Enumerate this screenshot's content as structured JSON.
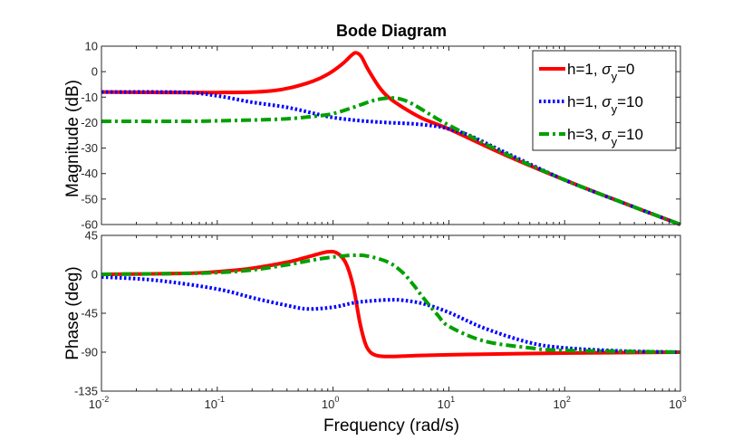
{
  "chart_data": {
    "type": "line",
    "title": "Bode Diagram",
    "xlabel": "Frequency  (rad/s)",
    "xscale": "log",
    "xlim": [
      0.01,
      1000
    ],
    "xticks": [
      {
        "base": "10",
        "exp": "-2",
        "value": 0.01
      },
      {
        "base": "10",
        "exp": "-1",
        "value": 0.1
      },
      {
        "base": "10",
        "exp": "0",
        "value": 1
      },
      {
        "base": "10",
        "exp": "1",
        "value": 10
      },
      {
        "base": "10",
        "exp": "2",
        "value": 100
      },
      {
        "base": "10",
        "exp": "3",
        "value": 1000
      }
    ],
    "magnitude": {
      "ylabel": "Magnitude (dB)",
      "ylim": [
        -60,
        10
      ],
      "yticks": [
        "10",
        "0",
        "-10",
        "-20",
        "-30",
        "-40",
        "-50",
        "-60"
      ],
      "series": [
        {
          "name": "h=1, σy=0",
          "color": "#ff0000",
          "style": "solid",
          "x": [
            0.01,
            0.1,
            0.3,
            0.6,
            0.9,
            1.2,
            1.45,
            1.58,
            1.75,
            2.0,
            2.5,
            3.0,
            4.0,
            6.0,
            10,
            30,
            100,
            300,
            1000
          ],
          "y": [
            -8,
            -8.2,
            -7.5,
            -4.5,
            -1,
            3,
            6.5,
            7.4,
            6,
            1,
            -6,
            -10,
            -14,
            -18.5,
            -22.5,
            -32.5,
            -42.5,
            -51,
            -60
          ]
        },
        {
          "name": "h=1, σy=10",
          "color": "#0000ff",
          "style": "dotted",
          "x": [
            0.01,
            0.05,
            0.1,
            0.2,
            0.4,
            0.7,
            1.0,
            1.5,
            2.0,
            3.0,
            5.0,
            8.0,
            10,
            15,
            30,
            100,
            300,
            1000
          ],
          "y": [
            -8,
            -8.1,
            -9.5,
            -12,
            -14,
            -16.5,
            -18,
            -19,
            -19.5,
            -20,
            -20.5,
            -21.5,
            -22.5,
            -25,
            -31.5,
            -42.5,
            -51,
            -60
          ]
        },
        {
          "name": "h=3, σy=10",
          "color": "#00a000",
          "style": "dashdot",
          "x": [
            0.01,
            0.05,
            0.1,
            0.2,
            0.4,
            0.7,
            1.0,
            1.5,
            2.0,
            2.5,
            3.2,
            4.0,
            5.0,
            7.0,
            10,
            30,
            100,
            300,
            1000
          ],
          "y": [
            -19.5,
            -19.5,
            -19.3,
            -19,
            -18.5,
            -17.5,
            -16.5,
            -14,
            -12,
            -10.8,
            -10.3,
            -11,
            -13,
            -17,
            -21,
            -32,
            -42.5,
            -51,
            -60
          ]
        }
      ]
    },
    "phase": {
      "ylabel": "Phase (deg)",
      "ylim": [
        -135,
        45
      ],
      "yticks": [
        "45",
        "0",
        "-45",
        "-90",
        "-135"
      ],
      "series": [
        {
          "name": "h=1, σy=0",
          "color": "#ff0000",
          "style": "solid",
          "x": [
            0.01,
            0.05,
            0.1,
            0.2,
            0.4,
            0.6,
            0.9,
            1.1,
            1.3,
            1.5,
            1.7,
            1.9,
            2.1,
            2.4,
            3.0,
            5.0,
            10,
            30,
            100,
            1000
          ],
          "y": [
            0,
            1,
            3,
            7,
            14,
            20,
            26,
            24,
            12,
            -15,
            -55,
            -80,
            -90,
            -94,
            -95,
            -94,
            -93,
            -92,
            -91,
            -90
          ]
        },
        {
          "name": "h=1, σy=10",
          "color": "#0000ff",
          "style": "dotted",
          "x": [
            0.01,
            0.03,
            0.1,
            0.2,
            0.4,
            0.6,
            1.0,
            1.5,
            2.0,
            3.0,
            4.0,
            6.0,
            10,
            20,
            50,
            100,
            300,
            1000
          ],
          "y": [
            -3,
            -7,
            -17,
            -27,
            -36,
            -40,
            -38,
            -33,
            -31,
            -29.5,
            -30,
            -34,
            -44,
            -62,
            -79,
            -85,
            -88.5,
            -90
          ]
        },
        {
          "name": "h=3, σy=10",
          "color": "#00a000",
          "style": "dashdot",
          "x": [
            0.01,
            0.05,
            0.1,
            0.2,
            0.4,
            0.7,
            1.0,
            1.5,
            2.0,
            3.0,
            4.0,
            5.0,
            6.0,
            8.0,
            10,
            20,
            50,
            100,
            1000
          ],
          "y": [
            0,
            1,
            2,
            5,
            11,
            17,
            20,
            22,
            21,
            14,
            2,
            -13,
            -27,
            -47,
            -60,
            -77,
            -85,
            -88,
            -90
          ]
        }
      ]
    },
    "legend": {
      "position": "top-right",
      "entries": [
        {
          "prefix": "h=1, ",
          "sym": "σ",
          "sub": "y",
          "suffix": "=0"
        },
        {
          "prefix": "h=1, ",
          "sym": "σ",
          "sub": "y",
          "suffix": "=10"
        },
        {
          "prefix": "h=3, ",
          "sym": "σ",
          "sub": "y",
          "suffix": "=10"
        }
      ]
    }
  }
}
